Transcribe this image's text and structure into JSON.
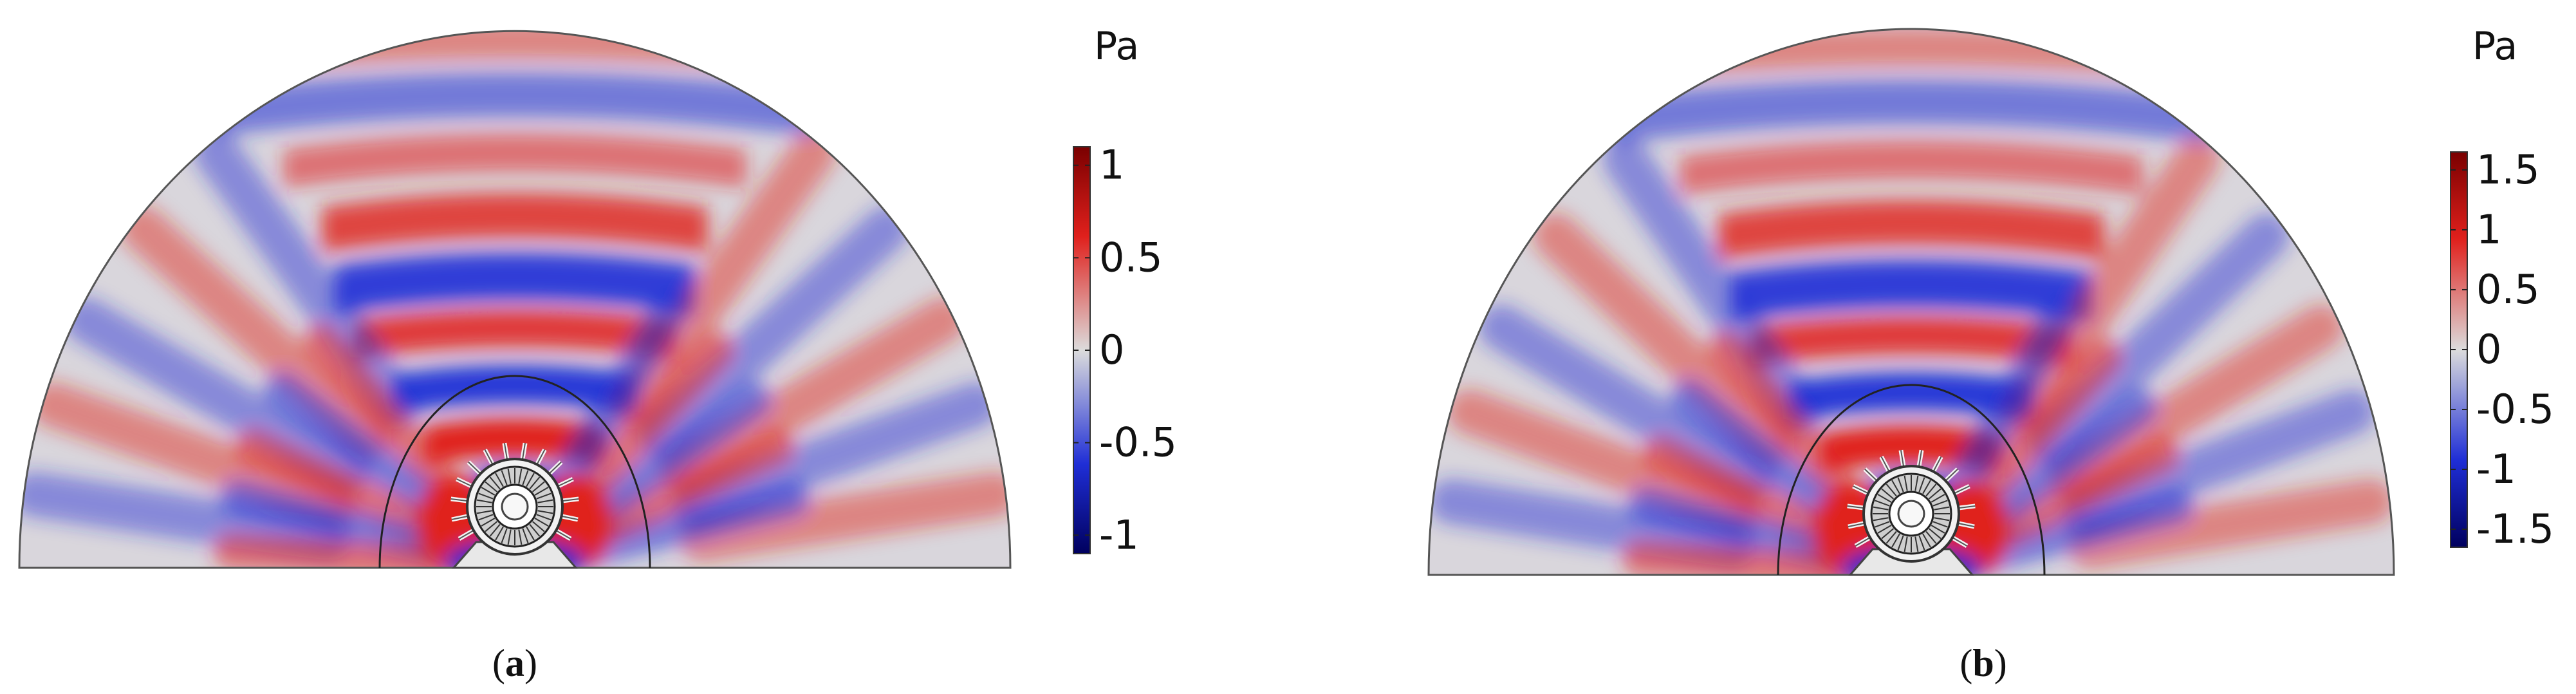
{
  "panels": [
    {
      "id": "a",
      "caption_open": "(",
      "caption_letter": "a",
      "caption_close": ")",
      "colorbar": {
        "unit": "Pa",
        "range": [
          -1.1,
          1.1
        ],
        "ticks": [
          {
            "value": 1,
            "label": "1"
          },
          {
            "value": 0.5,
            "label": "0.5"
          },
          {
            "value": 0,
            "label": "0"
          },
          {
            "value": -0.5,
            "label": "-0.5"
          },
          {
            "value": -1,
            "label": "-1"
          }
        ]
      }
    },
    {
      "id": "b",
      "caption_open": "(",
      "caption_letter": "b",
      "caption_close": ")",
      "colorbar": {
        "unit": "Pa",
        "range": [
          -1.65,
          1.65
        ],
        "ticks": [
          {
            "value": 1.5,
            "label": "1.5"
          },
          {
            "value": 1,
            "label": "1"
          },
          {
            "value": 0.5,
            "label": "0.5"
          },
          {
            "value": 0,
            "label": "0"
          },
          {
            "value": -0.5,
            "label": "-0.5"
          },
          {
            "value": -1,
            "label": "-1"
          },
          {
            "value": -1.5,
            "label": "-1.5"
          }
        ]
      }
    }
  ],
  "colors": {
    "positive": "#e0201c",
    "negative": "#1f2ed6",
    "neutral": "#d8d8d8",
    "max": "#7a0000",
    "min": "#00005e"
  }
}
